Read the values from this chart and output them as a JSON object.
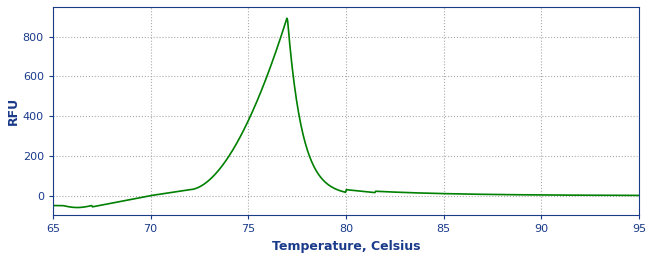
{
  "xlabel": "Temperature, Celsius",
  "ylabel": "RFU",
  "xlim": [
    65,
    95
  ],
  "ylim": [
    -100,
    950
  ],
  "yticks": [
    0,
    200,
    400,
    600,
    800
  ],
  "xticks": [
    65,
    70,
    75,
    80,
    85,
    90,
    95
  ],
  "line_color": "#008000",
  "bg_color": "#ffffff",
  "plot_bg_color": "#f0f4f0",
  "grid_color": "#aaaaaa",
  "label_color": "#1a3a8a",
  "tick_color": "#1a3a8a",
  "spine_color": "#1a3a8a",
  "figsize": [
    6.53,
    2.6
  ],
  "dpi": 100
}
